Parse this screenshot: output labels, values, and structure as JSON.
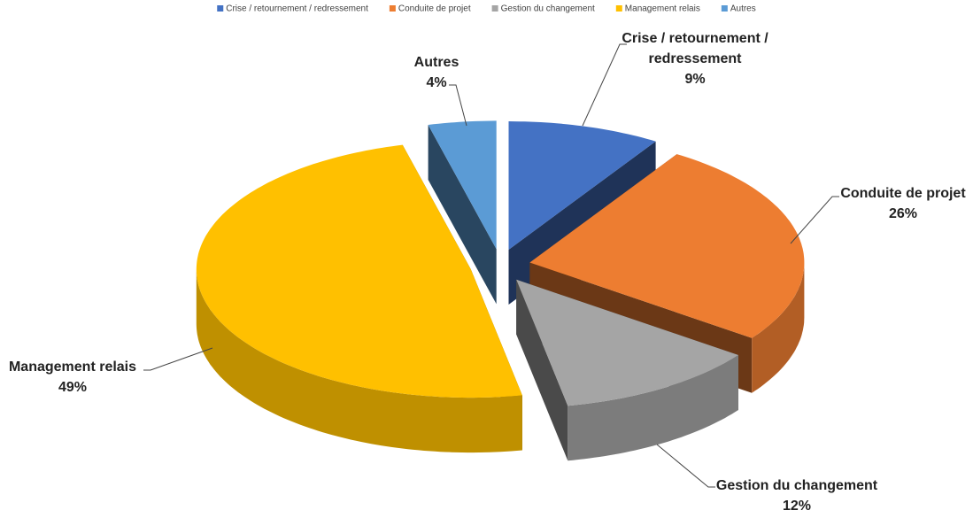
{
  "chart_data": {
    "type": "pie3d",
    "categories": [
      "Crise / retournement / redressement",
      "Conduite de projet",
      "Gestion du changement",
      "Management relais",
      "Autres"
    ],
    "values": [
      9,
      26,
      12,
      49,
      4
    ],
    "value_labels": [
      "9%",
      "26%",
      "12%",
      "49%",
      "4%"
    ],
    "colors": [
      "#4472c4",
      "#ed7d31",
      "#a5a5a5",
      "#ffc000",
      "#5b9bd5"
    ],
    "legend": "top"
  }
}
